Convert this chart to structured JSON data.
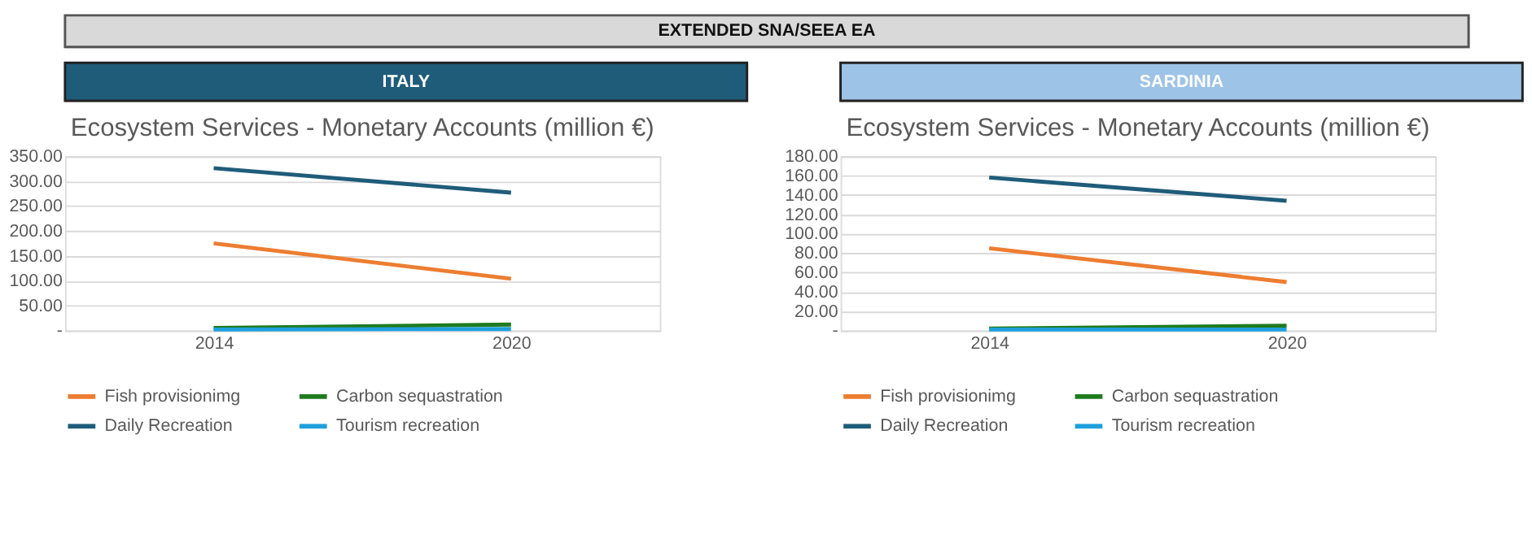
{
  "chart_data": [
    {
      "type": "line",
      "annotations": [
        "EXTENDED SNA/SEEA EA"
      ],
      "subtitle": "ITALY",
      "title": "Ecosystem Services - Monetary Accounts (million €)",
      "categories": [
        "2014",
        "2020"
      ],
      "series": [
        {
          "name": "Fish provisionimg",
          "color": "#ed7d31",
          "values": [
            175,
            104
          ]
        },
        {
          "name": "Carbon sequastration",
          "color": "#1e7b1e",
          "values": [
            5,
            12
          ]
        },
        {
          "name": "Daily Recreation",
          "color": "#1f5c7a",
          "values": [
            326,
            277
          ]
        },
        {
          "name": "Tourism recreation",
          "color": "#1ea0dc",
          "values": [
            2,
            3
          ]
        }
      ],
      "ylim": [
        0,
        350
      ],
      "yticks": [
        {
          "value": 0,
          "label": "-"
        },
        {
          "value": 50,
          "label": "50.00"
        },
        {
          "value": 100,
          "label": "100.00"
        },
        {
          "value": 150,
          "label": "150.00"
        },
        {
          "value": 200,
          "label": "200.00"
        },
        {
          "value": 250,
          "label": "250.00"
        },
        {
          "value": 300,
          "label": "300.00"
        },
        {
          "value": 350,
          "label": "350.00"
        }
      ],
      "grid": "y",
      "legend": "bottom",
      "marker": "none"
    },
    {
      "type": "line",
      "subtitle": "SARDINIA",
      "title": "Ecosystem Services - Monetary Accounts (million €)",
      "categories": [
        "2014",
        "2020"
      ],
      "series": [
        {
          "name": "Fish provisionimg",
          "color": "#ed7d31",
          "values": [
            85,
            50
          ]
        },
        {
          "name": "Carbon sequastration",
          "color": "#1e7b1e",
          "values": [
            2,
            5
          ]
        },
        {
          "name": "Daily Recreation",
          "color": "#1f5c7a",
          "values": [
            158,
            134
          ]
        },
        {
          "name": "Tourism recreation",
          "color": "#1ea0dc",
          "values": [
            1,
            1
          ]
        }
      ],
      "ylim": [
        0,
        180
      ],
      "yticks": [
        {
          "value": 0,
          "label": "-"
        },
        {
          "value": 20,
          "label": "20.00"
        },
        {
          "value": 40,
          "label": "40.00"
        },
        {
          "value": 60,
          "label": "60.00"
        },
        {
          "value": 80,
          "label": "80.00"
        },
        {
          "value": 100,
          "label": "100.00"
        },
        {
          "value": 120,
          "label": "120.00"
        },
        {
          "value": 140,
          "label": "140.00"
        },
        {
          "value": 160,
          "label": "160.00"
        },
        {
          "value": 180,
          "label": "180.00"
        }
      ],
      "grid": "y",
      "legend": "bottom",
      "marker": "none"
    }
  ]
}
